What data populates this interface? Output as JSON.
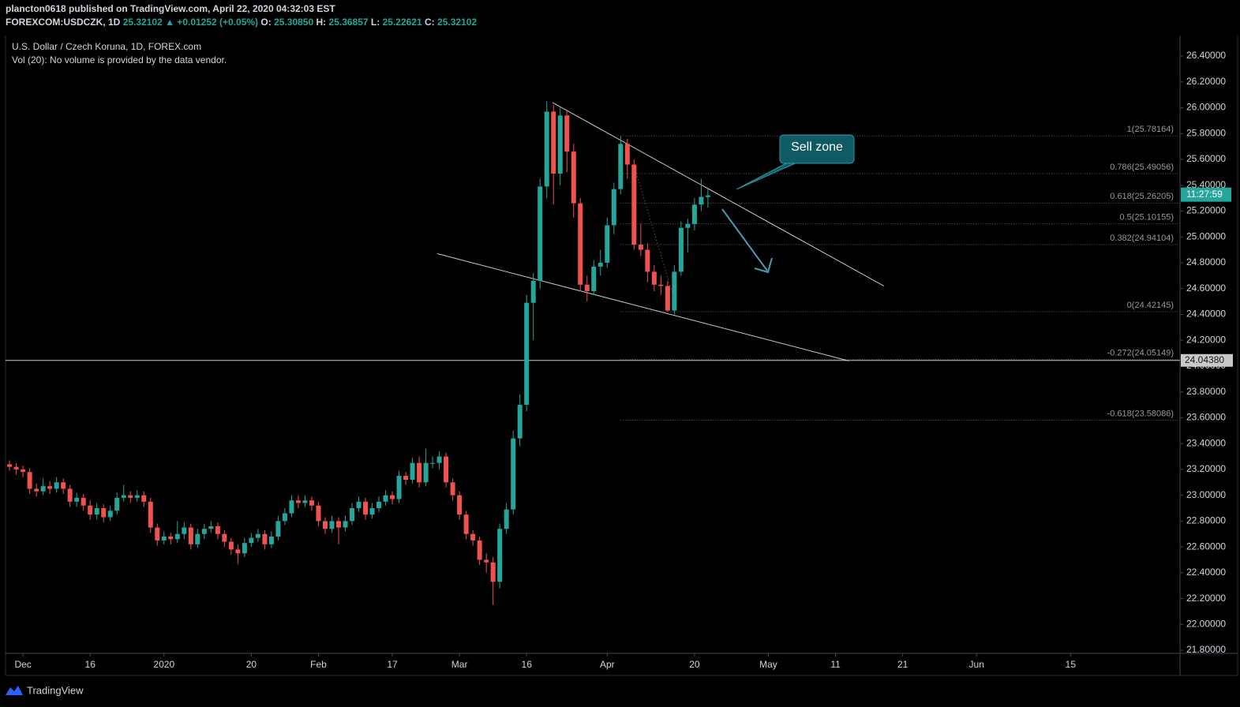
{
  "header": {
    "publisher": "plancton0618 published on TradingView.com, April 22, 2020 04:32:03 EST",
    "symbol": "FOREXCOM:USDCZK, 1D",
    "price": "25.32102",
    "change": "▲ +0.01252 (+0.05%)",
    "ohlc": [
      {
        "key": "O:",
        "value": "25.30850"
      },
      {
        "key": "H:",
        "value": "25.36857"
      },
      {
        "key": "L:",
        "value": "25.22621"
      },
      {
        "key": "C:",
        "value": "25.32102"
      }
    ]
  },
  "legend": {
    "title": "U.S. Dollar / Czech Koruna, 1D, FOREX.com",
    "volume": "Vol (20): No volume is provided by the data vendor."
  },
  "chart_data": {
    "type": "candlestick",
    "up_color": "#26a69a",
    "down_color": "#ef5350",
    "ohlc": [
      [
        23.24,
        23.27,
        23.19,
        23.22
      ],
      [
        23.22,
        23.25,
        23.16,
        23.2
      ],
      [
        23.2,
        23.23,
        23.14,
        23.18
      ],
      [
        23.18,
        23.21,
        23.01,
        23.05
      ],
      [
        23.05,
        23.09,
        22.99,
        23.03
      ],
      [
        23.03,
        23.13,
        23.0,
        23.07
      ],
      [
        23.07,
        23.11,
        23.01,
        23.05
      ],
      [
        23.05,
        23.14,
        23.02,
        23.1
      ],
      [
        23.1,
        23.13,
        23.01,
        23.05
      ],
      [
        23.05,
        23.08,
        22.91,
        22.95
      ],
      [
        22.95,
        23.02,
        22.91,
        22.98
      ],
      [
        22.98,
        23.01,
        22.88,
        22.92
      ],
      [
        22.92,
        22.96,
        22.81,
        22.85
      ],
      [
        22.85,
        22.94,
        22.81,
        22.9
      ],
      [
        22.9,
        22.93,
        22.79,
        22.83
      ],
      [
        22.83,
        22.92,
        22.8,
        22.88
      ],
      [
        22.88,
        23.02,
        22.85,
        22.98
      ],
      [
        22.98,
        23.08,
        22.95,
        23.0
      ],
      [
        23.0,
        23.03,
        22.94,
        22.98
      ],
      [
        22.98,
        23.04,
        22.95,
        23.0
      ],
      [
        23.0,
        23.03,
        22.91,
        22.95
      ],
      [
        22.95,
        22.98,
        22.71,
        22.75
      ],
      [
        22.75,
        22.78,
        22.61,
        22.65
      ],
      [
        22.65,
        22.72,
        22.62,
        22.68
      ],
      [
        22.68,
        22.71,
        22.62,
        22.66
      ],
      [
        22.66,
        22.8,
        22.63,
        22.7
      ],
      [
        22.7,
        22.79,
        22.66,
        22.75
      ],
      [
        22.75,
        22.78,
        22.58,
        22.62
      ],
      [
        22.62,
        22.74,
        22.59,
        22.7
      ],
      [
        22.7,
        22.78,
        22.66,
        22.74
      ],
      [
        22.74,
        22.8,
        22.71,
        22.76
      ],
      [
        22.76,
        22.79,
        22.66,
        22.7
      ],
      [
        22.7,
        22.73,
        22.6,
        22.64
      ],
      [
        22.64,
        22.67,
        22.54,
        22.58
      ],
      [
        22.58,
        22.62,
        22.47,
        22.55
      ],
      [
        22.55,
        22.67,
        22.52,
        22.63
      ],
      [
        22.63,
        22.71,
        22.6,
        22.67
      ],
      [
        22.67,
        22.74,
        22.64,
        22.7
      ],
      [
        22.7,
        22.73,
        22.58,
        22.62
      ],
      [
        22.62,
        22.72,
        22.59,
        22.68
      ],
      [
        22.68,
        22.84,
        22.65,
        22.8
      ],
      [
        22.8,
        22.9,
        22.77,
        22.86
      ],
      [
        22.86,
        23.0,
        22.83,
        22.96
      ],
      [
        22.96,
        23.0,
        22.9,
        22.94
      ],
      [
        22.94,
        23.0,
        22.91,
        22.96
      ],
      [
        22.96,
        22.99,
        22.88,
        22.92
      ],
      [
        22.92,
        22.95,
        22.76,
        22.8
      ],
      [
        22.8,
        22.83,
        22.7,
        22.74
      ],
      [
        22.74,
        22.84,
        22.71,
        22.8
      ],
      [
        22.8,
        22.83,
        22.62,
        22.75
      ],
      [
        22.75,
        22.84,
        22.72,
        22.8
      ],
      [
        22.8,
        22.94,
        22.77,
        22.9
      ],
      [
        22.9,
        22.99,
        22.87,
        22.95
      ],
      [
        22.95,
        22.98,
        22.81,
        22.85
      ],
      [
        22.85,
        22.94,
        22.82,
        22.9
      ],
      [
        22.9,
        22.99,
        22.87,
        22.95
      ],
      [
        22.95,
        23.04,
        22.92,
        23.0
      ],
      [
        23.0,
        23.03,
        22.93,
        22.97
      ],
      [
        22.97,
        23.19,
        22.94,
        23.15
      ],
      [
        23.15,
        23.18,
        23.08,
        23.12
      ],
      [
        23.12,
        23.29,
        23.09,
        23.25
      ],
      [
        23.25,
        23.3,
        23.06,
        23.1
      ],
      [
        23.1,
        23.36,
        23.07,
        23.25
      ],
      [
        23.25,
        23.3,
        23.21,
        23.25
      ],
      [
        23.25,
        23.34,
        23.2,
        23.3
      ],
      [
        23.3,
        23.33,
        23.06,
        23.1
      ],
      [
        23.1,
        23.13,
        22.96,
        23.0
      ],
      [
        23.0,
        23.03,
        22.81,
        22.85
      ],
      [
        22.85,
        22.88,
        22.66,
        22.7
      ],
      [
        22.7,
        22.73,
        22.61,
        22.65
      ],
      [
        22.65,
        22.68,
        22.46,
        22.5
      ],
      [
        22.5,
        22.55,
        22.4,
        22.48
      ],
      [
        22.48,
        22.52,
        22.15,
        22.33
      ],
      [
        22.33,
        22.78,
        22.28,
        22.74
      ],
      [
        22.74,
        22.94,
        22.7,
        22.89
      ],
      [
        22.89,
        23.5,
        22.85,
        23.44
      ],
      [
        23.44,
        23.78,
        23.38,
        23.7
      ],
      [
        23.7,
        24.55,
        23.65,
        24.49
      ],
      [
        24.49,
        24.72,
        24.2,
        24.66
      ],
      [
        24.66,
        25.45,
        24.6,
        25.39
      ],
      [
        25.39,
        26.05,
        25.3,
        25.97
      ],
      [
        25.97,
        26.02,
        25.25,
        25.49
      ],
      [
        25.49,
        26.0,
        25.4,
        25.94
      ],
      [
        25.94,
        25.98,
        25.5,
        25.66
      ],
      [
        25.66,
        25.72,
        25.15,
        25.26
      ],
      [
        25.26,
        25.3,
        24.58,
        24.63
      ],
      [
        24.63,
        24.7,
        24.5,
        24.58
      ],
      [
        24.58,
        24.82,
        24.55,
        24.77
      ],
      [
        24.77,
        24.9,
        24.7,
        24.8
      ],
      [
        24.8,
        25.15,
        24.76,
        25.09
      ],
      [
        25.09,
        25.42,
        25.02,
        25.37
      ],
      [
        25.37,
        25.78,
        25.33,
        25.72
      ],
      [
        25.72,
        25.76,
        25.45,
        25.56
      ],
      [
        25.56,
        25.6,
        24.9,
        24.94
      ],
      [
        24.94,
        25.1,
        24.85,
        24.9
      ],
      [
        24.9,
        24.95,
        24.65,
        24.73
      ],
      [
        24.73,
        24.78,
        24.58,
        24.63
      ],
      [
        24.63,
        24.7,
        24.55,
        24.62
      ],
      [
        24.62,
        24.66,
        24.42,
        24.43
      ],
      [
        24.43,
        24.78,
        24.4,
        24.73
      ],
      [
        24.73,
        25.12,
        24.7,
        25.07
      ],
      [
        25.07,
        25.14,
        24.88,
        25.1
      ],
      [
        25.1,
        25.3,
        25.05,
        25.25
      ],
      [
        25.25,
        25.45,
        25.2,
        25.31
      ],
      [
        25.3085,
        25.36857,
        25.22621,
        25.32102
      ]
    ],
    "xlim": [
      -0.6,
      174.3
    ],
    "xticks": [
      {
        "value": 2,
        "label": "Dec"
      },
      {
        "value": 12,
        "label": "16"
      },
      {
        "value": 23,
        "label": "2020"
      },
      {
        "value": 36,
        "label": "20"
      },
      {
        "value": 46,
        "label": "Feb"
      },
      {
        "value": 57,
        "label": "17"
      },
      {
        "value": 67,
        "label": "Mar"
      },
      {
        "value": 77,
        "label": "16"
      },
      {
        "value": 89,
        "label": "Apr"
      },
      {
        "value": 102,
        "label": "20"
      },
      {
        "value": 113,
        "label": "May"
      },
      {
        "value": 123,
        "label": "11"
      },
      {
        "value": 133,
        "label": "21"
      },
      {
        "value": 144,
        "label": "Jun"
      },
      {
        "value": 158,
        "label": "15"
      }
    ],
    "ylim": [
      21.776,
      26.559
    ],
    "yticks": [
      {
        "value": 21.8,
        "label": "21.80000"
      },
      {
        "value": 22.0,
        "label": "22.00000"
      },
      {
        "value": 22.2,
        "label": "22.20000"
      },
      {
        "value": 22.4,
        "label": "22.40000"
      },
      {
        "value": 22.6,
        "label": "22.60000"
      },
      {
        "value": 22.8,
        "label": "22.80000"
      },
      {
        "value": 23.0,
        "label": "23.00000"
      },
      {
        "value": 23.2,
        "label": "23.20000"
      },
      {
        "value": 23.4,
        "label": "23.40000"
      },
      {
        "value": 23.6,
        "label": "23.60000"
      },
      {
        "value": 23.8,
        "label": "23.80000"
      },
      {
        "value": 24.0,
        "label": "24.00000"
      },
      {
        "value": 24.2,
        "label": "24.20000"
      },
      {
        "value": 24.4,
        "label": "24.40000"
      },
      {
        "value": 24.6,
        "label": "24.60000"
      },
      {
        "value": 24.8,
        "label": "24.80000"
      },
      {
        "value": 25.0,
        "label": "25.00000"
      },
      {
        "value": 25.2,
        "label": "25.20000"
      },
      {
        "value": 25.4,
        "label": "25.40000"
      },
      {
        "value": 25.6,
        "label": "25.60000"
      },
      {
        "value": 25.8,
        "label": "25.80000"
      },
      {
        "value": 26.0,
        "label": "26.00000"
      },
      {
        "value": 26.2,
        "label": "26.20000"
      },
      {
        "value": 26.4,
        "label": "26.40000"
      }
    ],
    "hline": {
      "value": 24.0438,
      "label": "24.04380"
    },
    "fib_start": 91,
    "fib_levels": [
      {
        "value": 25.78164,
        "label": "1(25.78164)"
      },
      {
        "value": 25.49056,
        "label": "0.786(25.49056)"
      },
      {
        "value": 25.26205,
        "label": "0.618(25.26205)"
      },
      {
        "value": 25.10155,
        "label": "0.5(25.10155)"
      },
      {
        "value": 24.94104,
        "label": "0.382(24.94104)"
      },
      {
        "value": 24.42145,
        "label": "0(24.42145)"
      },
      {
        "value": 24.05149,
        "label": "-0.272(24.05149)"
      },
      {
        "value": 23.58086,
        "label": "-0.618(23.58086)"
      }
    ],
    "trendlines": [
      [
        [
          80.85,
          26.04
        ],
        [
          130.2,
          24.62
        ]
      ],
      [
        [
          63.7,
          24.87
        ],
        [
          125.0,
          24.04
        ]
      ]
    ],
    "annotation": "Sell zone",
    "countdown": "11:27:59"
  },
  "footer": {
    "brand": "TradingView"
  }
}
